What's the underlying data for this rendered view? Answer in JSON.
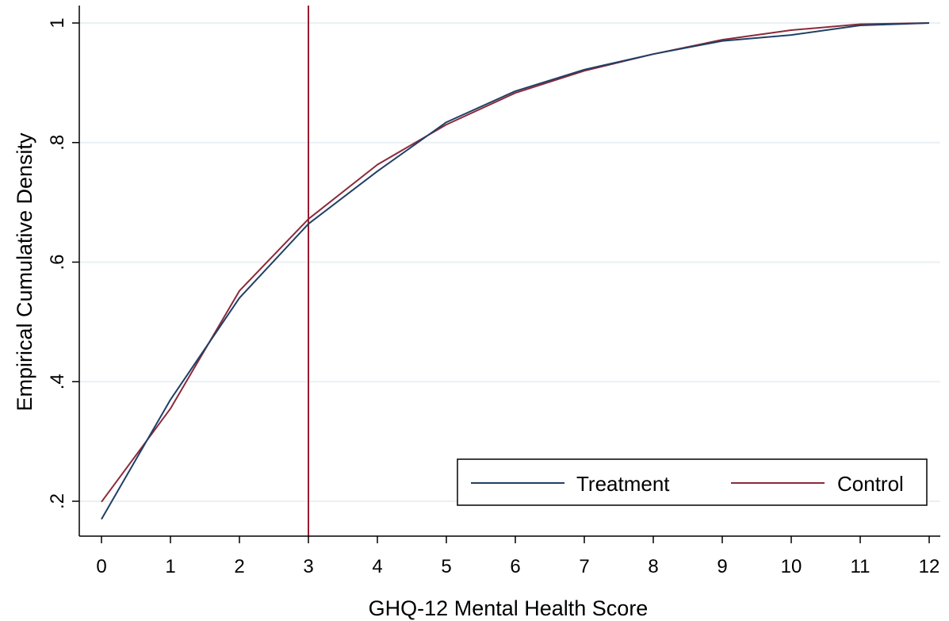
{
  "chart_data": {
    "type": "line",
    "title": "",
    "xlabel": "GHQ-12 Mental Health Score",
    "ylabel": "Empirical Cumulative Density",
    "x": [
      0,
      1,
      2,
      3,
      4,
      5,
      6,
      7,
      8,
      9,
      10,
      11,
      12
    ],
    "xlim": [
      0,
      12
    ],
    "ylim": [
      0.17,
      1.0
    ],
    "x_ticks": [
      "0",
      "1",
      "2",
      "3",
      "4",
      "5",
      "6",
      "7",
      "8",
      "9",
      "10",
      "11",
      "12"
    ],
    "y_ticks": [
      {
        "value": 0.2,
        "label": ".2"
      },
      {
        "value": 0.4,
        "label": ".4"
      },
      {
        "value": 0.6,
        "label": ".6"
      },
      {
        "value": 0.8,
        "label": ".8"
      },
      {
        "value": 1.0,
        "label": "1"
      }
    ],
    "grid": "horizontal",
    "legend_position": "bottom-right",
    "series": [
      {
        "name": "Treatment",
        "color": "#1f3f66",
        "values": [
          0.17,
          0.37,
          0.54,
          0.664,
          0.752,
          0.834,
          0.886,
          0.922,
          0.948,
          0.97,
          0.98,
          0.996,
          1.0
        ]
      },
      {
        "name": "Control",
        "color": "#8b2a3a",
        "values": [
          0.199,
          0.355,
          0.552,
          0.672,
          0.763,
          0.83,
          0.883,
          0.92,
          0.948,
          0.972,
          0.988,
          0.998,
          1.0
        ]
      }
    ],
    "reference_line": {
      "axis": "x",
      "value": 3,
      "color": "#9b1b30"
    }
  }
}
